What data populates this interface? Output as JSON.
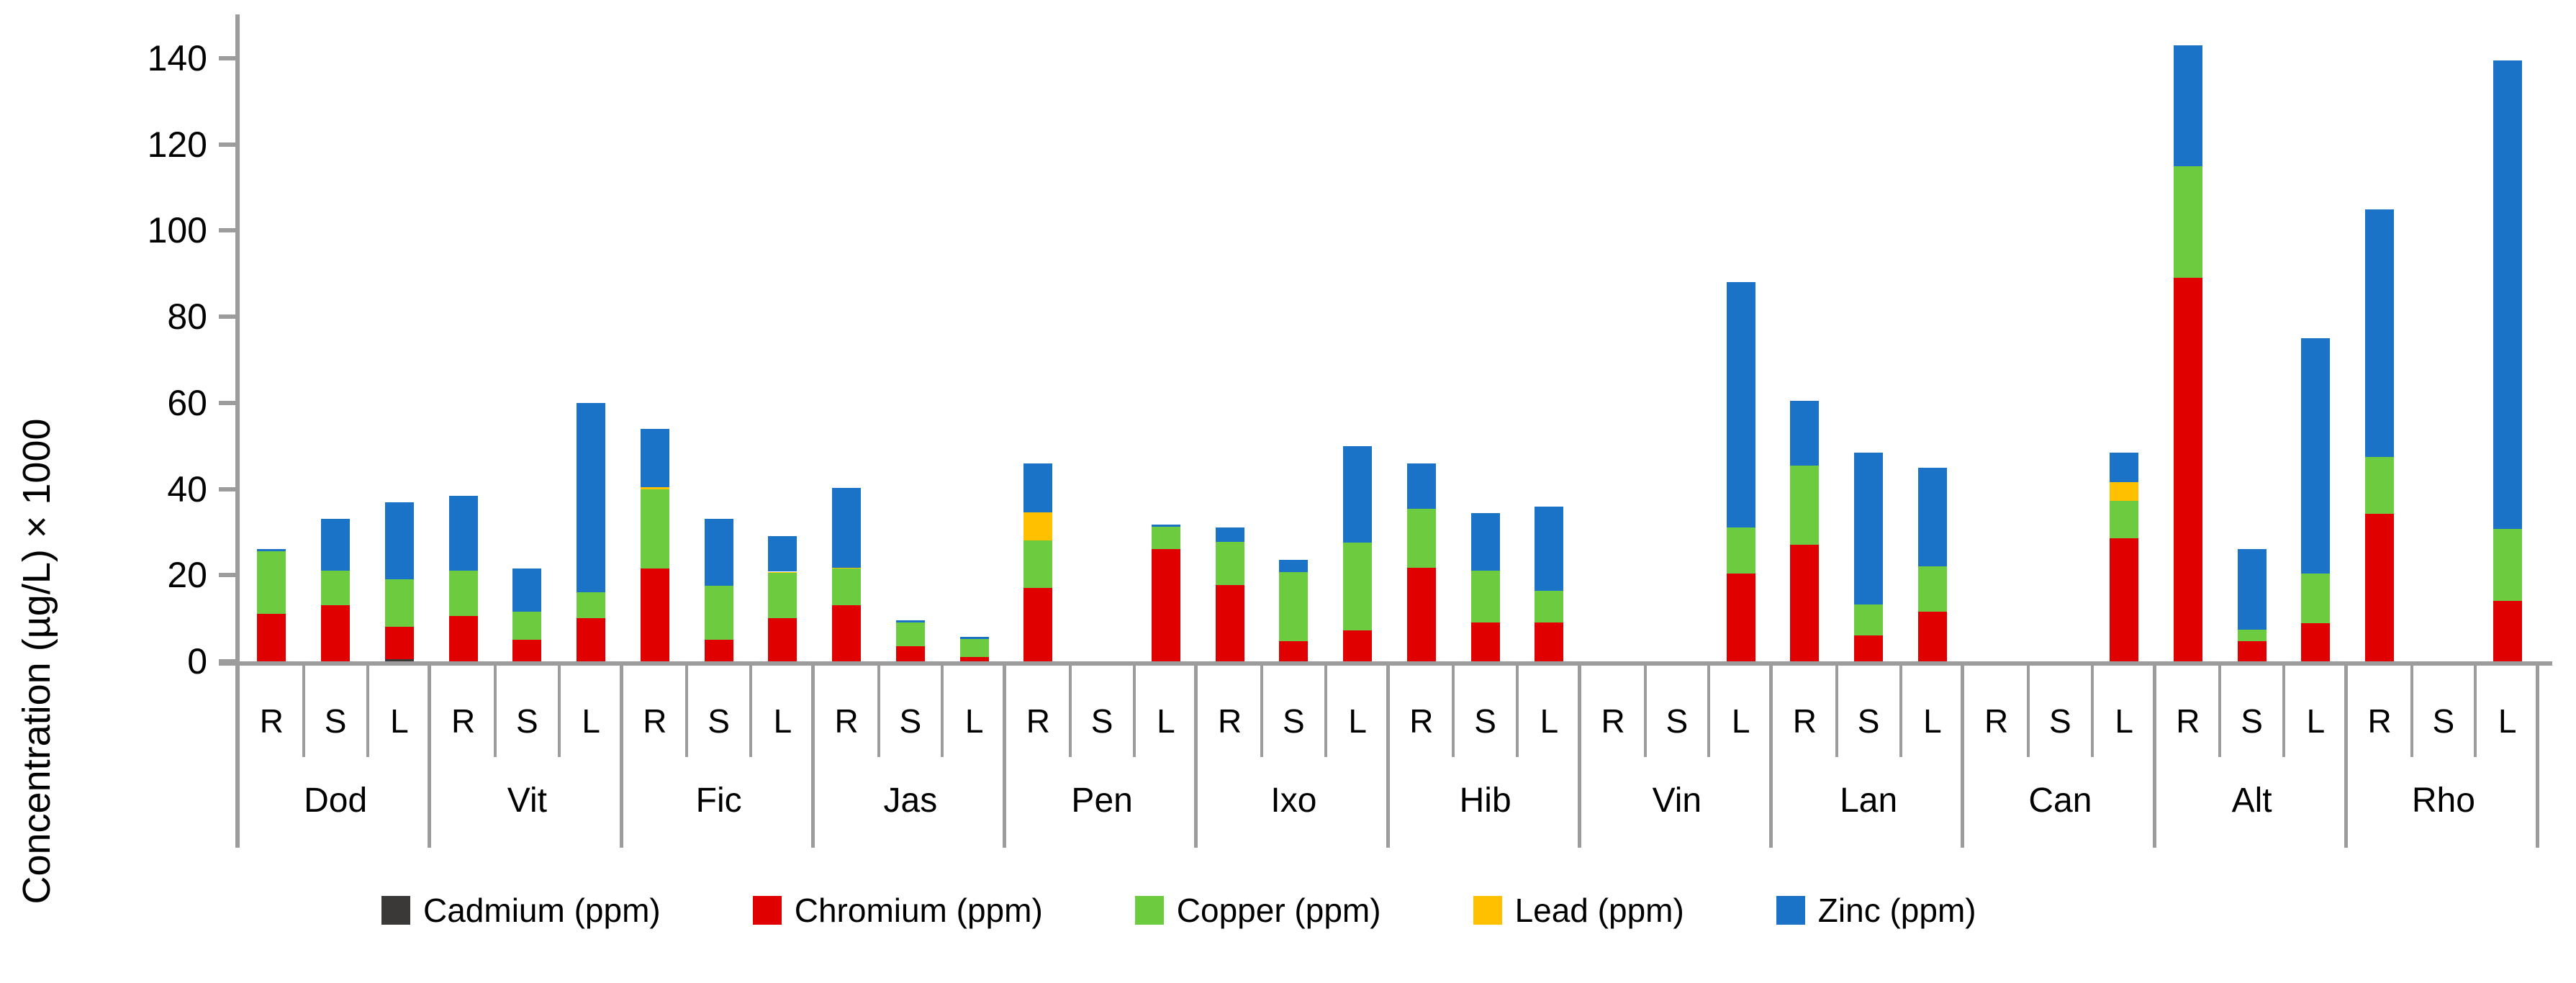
{
  "y_axis": {
    "title": "Concentration (µg/L) × 1000",
    "min": 0,
    "max": 140,
    "step": 20,
    "tick_labels": [
      "0",
      "20",
      "40",
      "60",
      "80",
      "100",
      "120",
      "140"
    ]
  },
  "x_axis": {
    "subcategory_labels": [
      "R",
      "S",
      "L"
    ]
  },
  "legend": {
    "items": [
      {
        "label": "Cadmium (ppm)",
        "color": "#3B3838"
      },
      {
        "label": "Chromium (ppm)",
        "color": "#E00000"
      },
      {
        "label": "Copper (ppm)",
        "color": "#6CCB3E"
      },
      {
        "label": "Lead (ppm)",
        "color": "#FFC000"
      },
      {
        "label": "Zinc (ppm)",
        "color": "#1B73C7"
      }
    ]
  },
  "chart_data": {
    "type": "bar",
    "stacked": true,
    "title": "",
    "xlabel": "",
    "ylabel": "Concentration (µg/L) × 1000",
    "ylim": [
      0,
      140
    ],
    "grid": false,
    "legend_position": "bottom",
    "series_names": [
      "Cadmium (ppm)",
      "Chromium (ppm)",
      "Copper (ppm)",
      "Lead (ppm)",
      "Zinc (ppm)"
    ],
    "series_colors": [
      "#3B3838",
      "#E00000",
      "#6CCB3E",
      "#FFC000",
      "#1B73C7"
    ],
    "subcategories": [
      "R",
      "S",
      "L"
    ],
    "categories": [
      "Dod",
      "Vit",
      "Fic",
      "Jas",
      "Pen",
      "Ixo",
      "Hib",
      "Vin",
      "Lan",
      "Can",
      "Alt",
      "Rho"
    ],
    "groups": [
      {
        "name": "Dod",
        "bars": [
          {
            "label": "R",
            "values": [
              0,
              11,
              14.5,
              0,
              0.5
            ]
          },
          {
            "label": "S",
            "values": [
              0,
              13,
              8,
              0,
              12
            ]
          },
          {
            "label": "L",
            "values": [
              0.5,
              7.5,
              11,
              0,
              18
            ]
          }
        ]
      },
      {
        "name": "Vit",
        "bars": [
          {
            "label": "R",
            "values": [
              0,
              10.5,
              10.5,
              0,
              17.5
            ]
          },
          {
            "label": "S",
            "values": [
              0,
              5,
              6.5,
              0,
              10
            ]
          },
          {
            "label": "L",
            "values": [
              0,
              10,
              6,
              0,
              44
            ]
          }
        ]
      },
      {
        "name": "Fic",
        "bars": [
          {
            "label": "R",
            "values": [
              0,
              21.5,
              18.5,
              0.4,
              13.6
            ]
          },
          {
            "label": "S",
            "values": [
              0,
              5,
              12.5,
              0,
              15.5
            ]
          },
          {
            "label": "L",
            "values": [
              0,
              10,
              10.5,
              0.3,
              8.2
            ]
          }
        ]
      },
      {
        "name": "Jas",
        "bars": [
          {
            "label": "R",
            "values": [
              0,
              13,
              8.5,
              0.3,
              18.5
            ]
          },
          {
            "label": "S",
            "values": [
              0,
              3.5,
              5.5,
              0,
              0.5
            ]
          },
          {
            "label": "L",
            "values": [
              0,
              1,
              4.2,
              0,
              0.5
            ]
          }
        ]
      },
      {
        "name": "Pen",
        "bars": [
          {
            "label": "R",
            "values": [
              0,
              17,
              11,
              6.5,
              11.5
            ]
          },
          {
            "label": "S",
            "values": [
              0,
              0,
              0,
              0,
              0
            ]
          },
          {
            "label": "L",
            "values": [
              0,
              26,
              5.2,
              0,
              0.5
            ]
          }
        ]
      },
      {
        "name": "Ixo",
        "bars": [
          {
            "label": "R",
            "values": [
              0,
              17.7,
              10,
              0,
              3.3
            ]
          },
          {
            "label": "S",
            "values": [
              0,
              4.7,
              16,
              0,
              2.8
            ]
          },
          {
            "label": "L",
            "values": [
              0,
              7.2,
              20.3,
              0,
              22.5
            ]
          }
        ]
      },
      {
        "name": "Hib",
        "bars": [
          {
            "label": "R",
            "values": [
              0,
              21.8,
              13.7,
              0,
              10.5
            ]
          },
          {
            "label": "S",
            "values": [
              0,
              9,
              12,
              0,
              13.5
            ]
          },
          {
            "label": "L",
            "values": [
              0,
              9,
              7.3,
              0,
              19.7
            ]
          }
        ]
      },
      {
        "name": "Vin",
        "bars": [
          {
            "label": "R",
            "values": [
              0,
              0,
              0,
              0,
              0
            ]
          },
          {
            "label": "S",
            "values": [
              0,
              0,
              0,
              0,
              0
            ]
          },
          {
            "label": "L",
            "values": [
              0,
              20.4,
              10.7,
              0,
              56.9
            ]
          }
        ]
      },
      {
        "name": "Lan",
        "bars": [
          {
            "label": "R",
            "values": [
              0,
              27,
              18.4,
              0,
              15.1
            ]
          },
          {
            "label": "S",
            "values": [
              0,
              6,
              7.2,
              0,
              35.3
            ]
          },
          {
            "label": "L",
            "values": [
              0,
              11.6,
              10.4,
              0,
              23
            ]
          }
        ]
      },
      {
        "name": "Can",
        "bars": [
          {
            "label": "R",
            "values": [
              0,
              0,
              0,
              0,
              0
            ]
          },
          {
            "label": "S",
            "values": [
              0,
              0,
              0,
              0,
              0
            ]
          },
          {
            "label": "L",
            "values": [
              0,
              28.6,
              8.7,
              4.3,
              6.8
            ]
          }
        ]
      },
      {
        "name": "Alt",
        "bars": [
          {
            "label": "R",
            "values": [
              0,
              89,
              26,
              0,
              28
            ]
          },
          {
            "label": "S",
            "values": [
              0,
              4.6,
              2.8,
              0,
              18.6
            ]
          },
          {
            "label": "L",
            "values": [
              0,
              8.9,
              11.5,
              0,
              54.6
            ]
          }
        ]
      },
      {
        "name": "Rho",
        "bars": [
          {
            "label": "R",
            "values": [
              0,
              34.2,
              13.2,
              0,
              57.6
            ]
          },
          {
            "label": "S",
            "values": [
              0,
              0,
              0,
              0,
              0
            ]
          },
          {
            "label": "L",
            "values": [
              0,
              14,
              16.8,
              0,
              108.7
            ]
          }
        ]
      }
    ]
  }
}
